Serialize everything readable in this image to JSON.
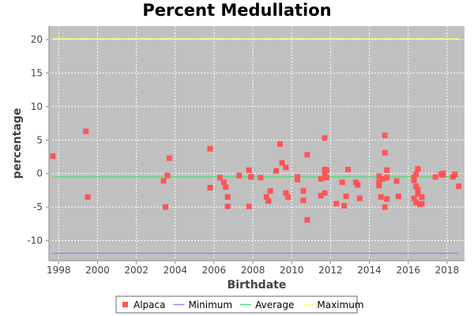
{
  "chart_data": {
    "type": "scatter",
    "title": "Percent Medullation",
    "xlabel": "Birthdate",
    "ylabel": "percentage",
    "xlim": [
      1997.5,
      2018.9
    ],
    "ylim": [
      -13,
      22
    ],
    "x_ticks": [
      "1998",
      "2000",
      "2002",
      "2004",
      "2006",
      "2008",
      "2010",
      "2012",
      "2014",
      "2016",
      "2018"
    ],
    "y_ticks": [
      "20",
      "15",
      "10",
      "5",
      "0",
      "-5",
      "-10"
    ],
    "grid": true,
    "legend_position": "bottom",
    "plot_background": "#c0c0c0",
    "series": [
      {
        "name": "Alpaca",
        "kind": "points",
        "color": "#ff5555",
        "points": [
          [
            1997.7,
            2.6
          ],
          [
            1999.4,
            6.3
          ],
          [
            1999.5,
            -3.5
          ],
          [
            2003.4,
            -1.1
          ],
          [
            2003.5,
            -5.0
          ],
          [
            2003.6,
            -0.3
          ],
          [
            2003.7,
            2.3
          ],
          [
            2005.8,
            3.7
          ],
          [
            2005.8,
            -2.1
          ],
          [
            2006.3,
            -0.6
          ],
          [
            2006.5,
            -1.3
          ],
          [
            2006.6,
            -2.0
          ],
          [
            2006.7,
            -3.5
          ],
          [
            2006.7,
            -4.9
          ],
          [
            2007.3,
            -0.3
          ],
          [
            2007.8,
            0.5
          ],
          [
            2007.9,
            -0.5
          ],
          [
            2007.8,
            -4.9
          ],
          [
            2008.4,
            -0.6
          ],
          [
            2008.7,
            -3.5
          ],
          [
            2008.8,
            -4.1
          ],
          [
            2008.9,
            -2.6
          ],
          [
            2009.2,
            0.4
          ],
          [
            2009.4,
            4.4
          ],
          [
            2009.5,
            1.6
          ],
          [
            2009.7,
            0.9
          ],
          [
            2009.7,
            -2.9
          ],
          [
            2009.8,
            -3.5
          ],
          [
            2010.3,
            -0.5
          ],
          [
            2010.3,
            -0.9
          ],
          [
            2010.6,
            -4.0
          ],
          [
            2010.6,
            -2.6
          ],
          [
            2010.8,
            -6.9
          ],
          [
            2010.8,
            2.8
          ],
          [
            2011.5,
            -0.8
          ],
          [
            2011.5,
            -3.3
          ],
          [
            2011.7,
            0.0
          ],
          [
            2011.7,
            0.6
          ],
          [
            2011.8,
            0.5
          ],
          [
            2011.7,
            5.3
          ],
          [
            2011.7,
            -2.9
          ],
          [
            2011.8,
            -0.6
          ],
          [
            2012.3,
            -4.5
          ],
          [
            2012.6,
            -1.3
          ],
          [
            2012.7,
            -4.8
          ],
          [
            2012.8,
            -3.4
          ],
          [
            2012.9,
            0.6
          ],
          [
            2013.3,
            -1.3
          ],
          [
            2013.4,
            -1.7
          ],
          [
            2013.5,
            -3.7
          ],
          [
            2014.5,
            -0.4
          ],
          [
            2014.5,
            -1.3
          ],
          [
            2014.5,
            -1.8
          ],
          [
            2014.6,
            -3.5
          ],
          [
            2014.7,
            -0.8
          ],
          [
            2014.8,
            5.7
          ],
          [
            2014.8,
            3.1
          ],
          [
            2014.9,
            0.5
          ],
          [
            2014.9,
            -0.6
          ],
          [
            2014.9,
            -3.8
          ],
          [
            2014.8,
            -5.0
          ],
          [
            2015.4,
            -1.1
          ],
          [
            2015.5,
            -3.4
          ],
          [
            2016.3,
            -0.6
          ],
          [
            2016.3,
            -1.0
          ],
          [
            2016.4,
            -0.1
          ],
          [
            2016.4,
            -1.9
          ],
          [
            2016.5,
            -2.4
          ],
          [
            2016.5,
            -3.0
          ],
          [
            2016.3,
            -3.7
          ],
          [
            2016.4,
            -4.3
          ],
          [
            2016.5,
            0.7
          ],
          [
            2016.6,
            -4.6
          ],
          [
            2016.7,
            -4.5
          ],
          [
            2016.7,
            -3.5
          ],
          [
            2017.4,
            -0.5
          ],
          [
            2017.7,
            -0.1
          ],
          [
            2017.8,
            0.0
          ],
          [
            2017.8,
            -0.2
          ],
          [
            2018.3,
            -0.5
          ],
          [
            2018.4,
            -0.1
          ],
          [
            2018.6,
            -1.9
          ]
        ]
      },
      {
        "name": "Minimum",
        "kind": "line",
        "color": "#8888ff",
        "x": [
          1997.7,
          2018.6
        ],
        "y": [
          -11.9,
          -11.9
        ]
      },
      {
        "name": "Average",
        "kind": "line",
        "color": "#55dd77",
        "x": [
          1997.7,
          2018.6
        ],
        "y": [
          -0.5,
          -0.5
        ]
      },
      {
        "name": "Maximum",
        "kind": "line",
        "color": "#ffff77",
        "x": [
          1997.7,
          2018.6
        ],
        "y": [
          20.1,
          20.1
        ]
      }
    ]
  }
}
